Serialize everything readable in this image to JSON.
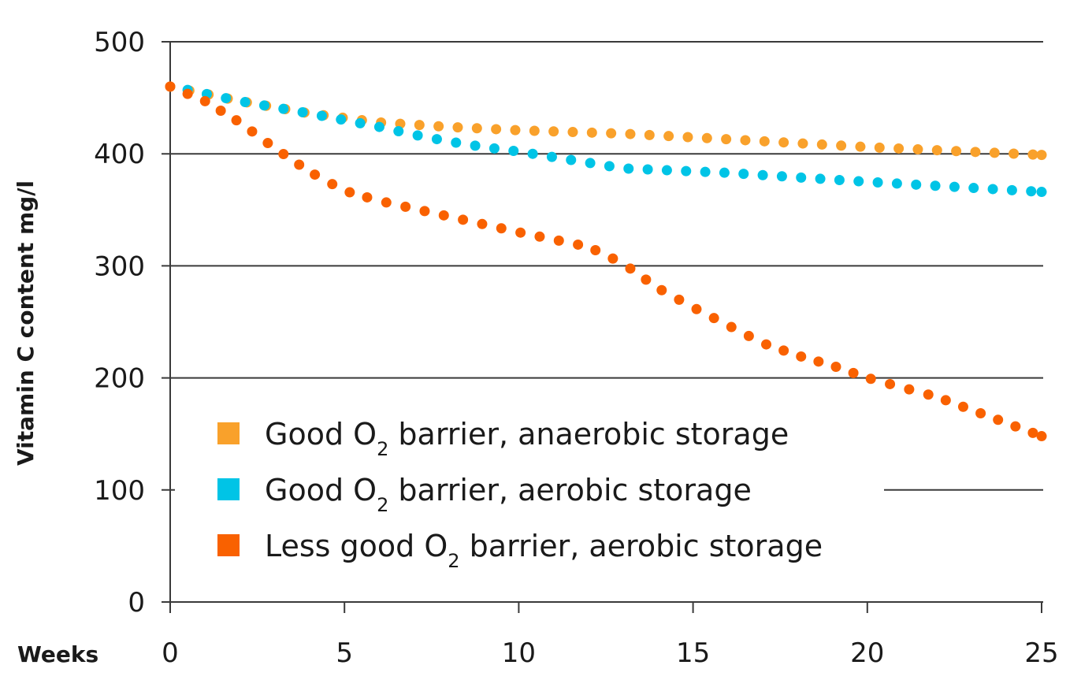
{
  "chart_data": {
    "type": "line",
    "title": "",
    "xlabel": "Weeks",
    "ylabel": "Vitamin C content mg/l",
    "xlim": [
      0,
      25
    ],
    "ylim": [
      0,
      500
    ],
    "xticks": [
      0,
      5,
      10,
      15,
      20,
      25
    ],
    "yticks": [
      0,
      100,
      200,
      300,
      400,
      500
    ],
    "grid": "horizontal",
    "legend_position": "bottom-left",
    "line_style": "dotted",
    "series": [
      {
        "name": "Good O2 barrier, anaerobic storage",
        "label_main": "Good O",
        "label_sub": "2",
        "label_rest": " barrier, anaerobic storage",
        "color": "#F9A12B",
        "x": [
          0,
          2,
          4,
          6,
          8,
          10,
          13,
          16,
          20,
          25
        ],
        "y": [
          460,
          447,
          436,
          428,
          424,
          421,
          418,
          413,
          406,
          399
        ]
      },
      {
        "name": "Good O2 barrier, aerobic storage",
        "label_main": "Good O",
        "label_sub": "2",
        "label_rest": " barrier, aerobic storage",
        "color": "#00C4E6",
        "x": [
          0.5,
          2,
          4,
          5,
          6,
          7,
          8,
          9,
          10,
          11,
          13,
          16,
          20,
          25
        ],
        "y": [
          457,
          447,
          436,
          430,
          424,
          417,
          411,
          406,
          402,
          397,
          387,
          383,
          375,
          366
        ]
      },
      {
        "name": "Less good O2 barrier, aerobic storage",
        "label_main": "Less good O",
        "label_sub": "2",
        "label_rest": " barrier, aerobic storage",
        "color": "#F96100",
        "x": [
          0,
          1,
          2,
          3,
          4,
          5,
          6,
          8,
          10,
          12,
          13,
          14,
          15,
          16,
          17,
          18,
          19,
          20,
          22,
          25
        ],
        "y": [
          460,
          447,
          428,
          405,
          384,
          367,
          358,
          344,
          330,
          317,
          302,
          280,
          263,
          247,
          231,
          220,
          211,
          200,
          183,
          148
        ]
      }
    ]
  }
}
